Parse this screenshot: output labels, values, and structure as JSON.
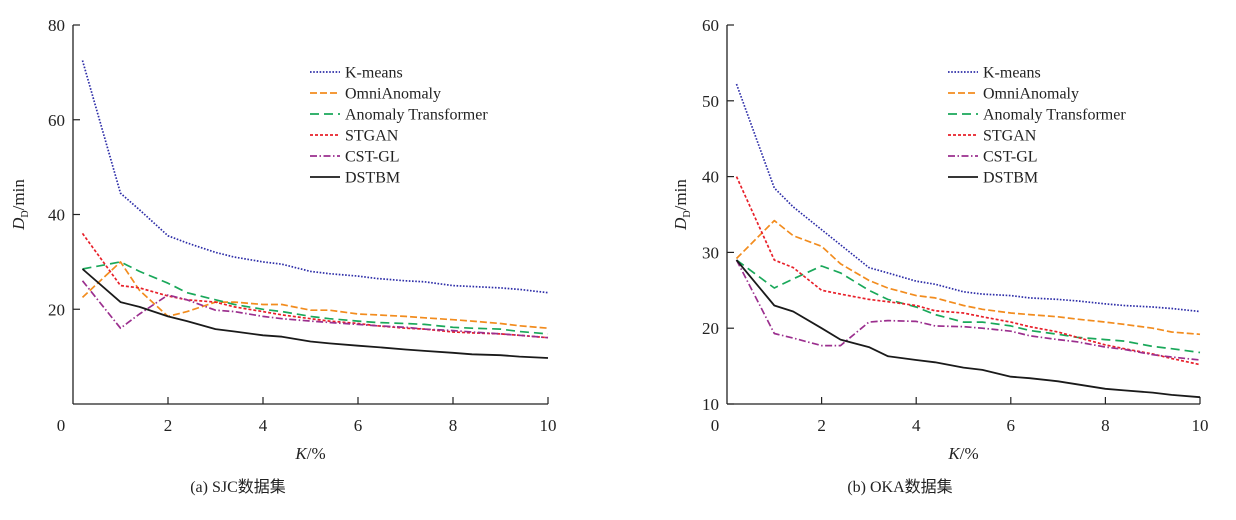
{
  "chart_data": [
    {
      "type": "line",
      "id": "a",
      "title": "",
      "caption": "(a)   SJC数据集",
      "xlabel": "K/%",
      "ylabel_main": "D",
      "ylabel_sub": "D",
      "ylabel_unit": "/min",
      "xlim": [
        0,
        10
      ],
      "ylim": [
        0,
        80
      ],
      "xticks": [
        0,
        2,
        4,
        6,
        8,
        10
      ],
      "yticks": [
        20,
        40,
        60,
        80
      ],
      "grid": false,
      "legend_position": "top-right",
      "x": [
        0.2,
        1.0,
        1.4,
        2.0,
        2.4,
        3.0,
        3.4,
        4.0,
        4.4,
        5.0,
        5.4,
        6.0,
        6.4,
        7.0,
        7.4,
        8.0,
        8.4,
        9.0,
        9.4,
        10.0
      ],
      "series": [
        {
          "name": "K-means",
          "color": "#2e2ea8",
          "dash": "dot",
          "values": [
            72.5,
            44.5,
            41.0,
            35.5,
            34.0,
            32.0,
            31.0,
            30.0,
            29.5,
            28.0,
            27.5,
            27.0,
            26.5,
            26.0,
            25.8,
            25.0,
            24.8,
            24.5,
            24.2,
            23.5
          ]
        },
        {
          "name": "OmniAnomaly",
          "color": "#f28c1e",
          "dash": "longdash",
          "values": [
            22.5,
            30.0,
            24.0,
            18.5,
            19.5,
            21.5,
            21.5,
            21.0,
            21.0,
            19.8,
            19.8,
            19.0,
            18.8,
            18.5,
            18.2,
            17.8,
            17.5,
            17.0,
            16.5,
            16.0
          ]
        },
        {
          "name": "Anomaly Transformer",
          "color": "#1aa85a",
          "dash": "dash",
          "values": [
            28.5,
            30.0,
            28.0,
            25.5,
            23.5,
            22.0,
            21.0,
            20.0,
            19.5,
            18.5,
            18.0,
            17.5,
            17.2,
            17.0,
            16.8,
            16.2,
            16.0,
            15.8,
            15.3,
            14.8
          ]
        },
        {
          "name": "STGAN",
          "color": "#e8202a",
          "dash": "shortdash",
          "values": [
            36.0,
            25.0,
            24.5,
            22.8,
            22.0,
            21.5,
            20.5,
            19.5,
            18.8,
            18.0,
            17.5,
            17.0,
            16.5,
            16.0,
            15.8,
            15.2,
            15.0,
            14.8,
            14.5,
            14.0
          ]
        },
        {
          "name": "CST-GL",
          "color": "#9b2f8e",
          "dash": "dashdot",
          "values": [
            26.0,
            16.0,
            19.0,
            23.0,
            22.0,
            19.8,
            19.5,
            18.5,
            18.0,
            17.5,
            17.2,
            16.8,
            16.5,
            16.2,
            15.8,
            15.5,
            15.2,
            14.8,
            14.5,
            14.0
          ]
        },
        {
          "name": "DSTBM",
          "color": "#1a1a1a",
          "dash": "solid",
          "values": [
            28.5,
            21.5,
            20.5,
            18.5,
            17.5,
            15.8,
            15.3,
            14.5,
            14.2,
            13.2,
            12.8,
            12.3,
            12.0,
            11.5,
            11.2,
            10.8,
            10.5,
            10.3,
            10.0,
            9.7
          ]
        }
      ]
    },
    {
      "type": "line",
      "id": "b",
      "title": "",
      "caption": "(b)   OKA数据集",
      "xlabel": "K/%",
      "ylabel_main": "D",
      "ylabel_sub": "D",
      "ylabel_unit": "/min",
      "xlim": [
        0,
        10
      ],
      "ylim": [
        10,
        60
      ],
      "xticks": [
        0,
        2,
        4,
        6,
        8,
        10
      ],
      "yticks": [
        10,
        20,
        30,
        40,
        50,
        60
      ],
      "grid": false,
      "legend_position": "top-right",
      "x": [
        0.2,
        1.0,
        1.4,
        2.0,
        2.4,
        3.0,
        3.4,
        4.0,
        4.4,
        5.0,
        5.4,
        6.0,
        6.4,
        7.0,
        7.4,
        8.0,
        8.4,
        9.0,
        9.4,
        10.0
      ],
      "series": [
        {
          "name": "K-means",
          "color": "#2e2ea8",
          "dash": "dot",
          "values": [
            52.2,
            38.5,
            36.0,
            33.0,
            31.0,
            28.0,
            27.3,
            26.2,
            25.8,
            24.8,
            24.5,
            24.3,
            24.0,
            23.8,
            23.6,
            23.2,
            23.0,
            22.8,
            22.6,
            22.2
          ]
        },
        {
          "name": "OmniAnomaly",
          "color": "#f28c1e",
          "dash": "longdash",
          "values": [
            29.2,
            34.2,
            32.2,
            30.8,
            28.5,
            26.3,
            25.3,
            24.3,
            24.0,
            23.0,
            22.5,
            22.0,
            21.8,
            21.5,
            21.2,
            20.8,
            20.5,
            20.0,
            19.5,
            19.2
          ]
        },
        {
          "name": "Anomaly Transformer",
          "color": "#1aa85a",
          "dash": "dash",
          "values": [
            29.0,
            25.3,
            26.5,
            28.2,
            27.3,
            25.0,
            23.8,
            22.8,
            21.8,
            20.8,
            20.8,
            20.3,
            19.7,
            19.2,
            18.8,
            18.5,
            18.3,
            17.6,
            17.3,
            16.8
          ]
        },
        {
          "name": "STGAN",
          "color": "#e8202a",
          "dash": "shortdash",
          "values": [
            40.0,
            29.0,
            28.0,
            25.0,
            24.5,
            23.8,
            23.5,
            23.0,
            22.3,
            22.0,
            21.5,
            20.8,
            20.2,
            19.5,
            18.8,
            17.8,
            17.3,
            16.6,
            16.0,
            15.2
          ]
        },
        {
          "name": "CST-GL",
          "color": "#9b2f8e",
          "dash": "dashdot",
          "values": [
            29.0,
            19.3,
            18.7,
            17.7,
            17.7,
            20.8,
            21.0,
            20.9,
            20.3,
            20.2,
            20.0,
            19.6,
            19.0,
            18.5,
            18.2,
            17.5,
            17.2,
            16.5,
            16.2,
            15.8
          ]
        },
        {
          "name": "DSTBM",
          "color": "#1a1a1a",
          "dash": "solid",
          "values": [
            29.0,
            23.0,
            22.2,
            20.0,
            18.5,
            17.5,
            16.3,
            15.8,
            15.5,
            14.8,
            14.5,
            13.6,
            13.4,
            13.0,
            12.6,
            12.0,
            11.8,
            11.5,
            11.2,
            10.9
          ]
        }
      ]
    }
  ]
}
